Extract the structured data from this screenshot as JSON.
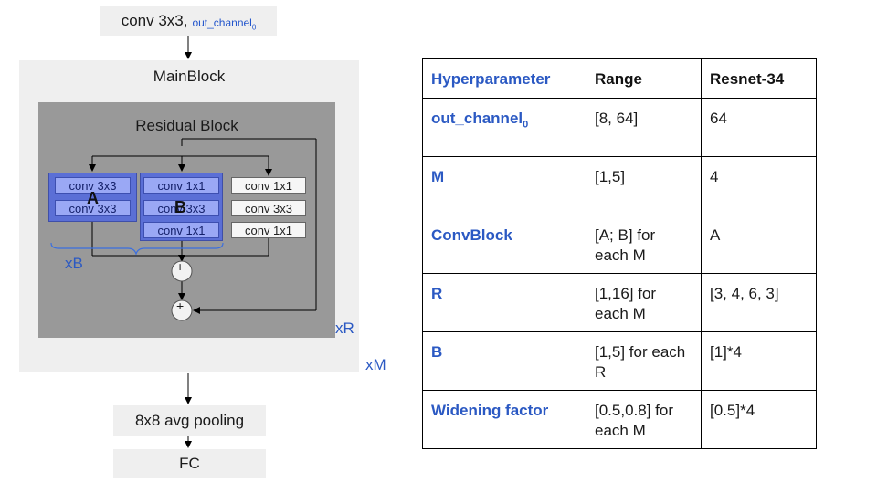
{
  "diagram": {
    "input": {
      "label": "conv 3x3,",
      "sublabel": "out_channel",
      "subscript": "0"
    },
    "mainblock": {
      "title": "MainBlock",
      "multiplier": "xM"
    },
    "residual": {
      "title": "Residual Block",
      "multiplier": "xR"
    },
    "branch_a": {
      "label": "A",
      "convs": [
        "conv 3x3",
        "conv 3x3"
      ]
    },
    "branch_b": {
      "label": "B",
      "convs": [
        "conv 1x1",
        "conv 3x3",
        "conv 1x1"
      ]
    },
    "branch_plain": {
      "convs": [
        "conv 1x1",
        "conv 3x3",
        "conv 1x1"
      ]
    },
    "branch_multiplier": "xB",
    "add_symbol": "+",
    "pooling": "8x8 avg pooling",
    "fc": "FC"
  },
  "table": {
    "headers": [
      "Hyperparameter",
      "Range",
      "Resnet-34"
    ],
    "rows": [
      {
        "name": "out_channel",
        "subscript": "0",
        "range": "[8, 64]",
        "resnet": "64"
      },
      {
        "name": "M",
        "subscript": "",
        "range": "[1,5]",
        "resnet": "4"
      },
      {
        "name": "ConvBlock",
        "subscript": "",
        "range": "[A; B] for each M",
        "resnet": "A"
      },
      {
        "name": "R",
        "subscript": "",
        "range": "[1,16] for each M",
        "resnet": "[3, 4, 6, 3]"
      },
      {
        "name": "B",
        "subscript": "",
        "range": "[1,5] for each R",
        "resnet": "[1]*4"
      },
      {
        "name": "Widening factor",
        "subscript": "",
        "range": "[0.5,0.8] for each M",
        "resnet": "[0.5]*4"
      }
    ]
  },
  "colors": {
    "accent_blue": "#2b59c3",
    "conv_blue": "#9aa8f5",
    "group_blue": "#5b6fd6",
    "residual_gray": "#999999",
    "light_gray": "#efefef"
  }
}
